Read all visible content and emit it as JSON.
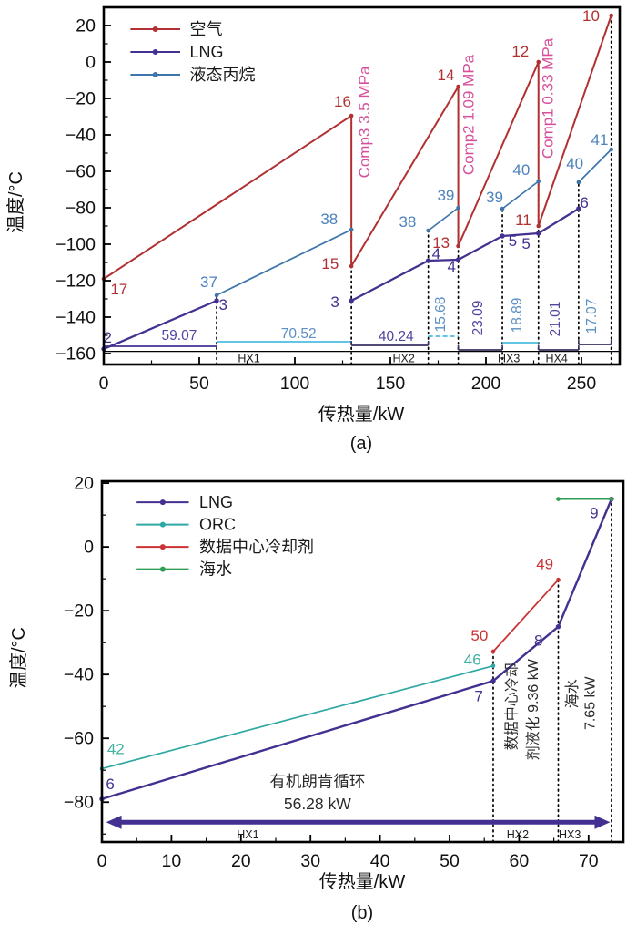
{
  "figure_caption_a": "(a)",
  "figure_caption_b": "(b)",
  "chart_data": [
    {
      "id": "a",
      "type": "line",
      "caption": "(a)",
      "xlabel": "传热量/kW",
      "ylabel": "温度/°C",
      "xlim": [
        0,
        270
      ],
      "ylim": [
        -166,
        30
      ],
      "xticks": [
        0,
        50,
        100,
        150,
        200,
        250
      ],
      "yticks": [
        20,
        0,
        -20,
        -40,
        -60,
        -80,
        -100,
        -120,
        -140,
        -160
      ],
      "x_minor": 25,
      "y_minor": 10,
      "grid": false,
      "legend": {
        "position": "top-left",
        "line_x1": 14,
        "line_x2": 40,
        "text_x": 45,
        "rows": [
          {
            "label": "空气",
            "color": "#b13032",
            "t": 18
          },
          {
            "label": "LNG",
            "color": "#443090",
            "t": 5.5
          },
          {
            "label": "液态丙烷",
            "color": "#3f75ad",
            "t": -7
          }
        ]
      },
      "series": [
        {
          "name": "空气",
          "color": "#b13032",
          "width": 2,
          "points": [
            [
              0,
              -119
            ],
            [
              129.59,
              -29.5
            ],
            [
              129.59,
              -112
            ],
            [
              185.51,
              -13.5
            ],
            [
              185.51,
              -101
            ],
            [
              227.49,
              0
            ],
            [
              227.49,
              -90
            ],
            [
              265.57,
              25.5
            ]
          ]
        },
        {
          "name": "LNG",
          "color": "#443090",
          "width": 2.3,
          "points": [
            [
              0,
              -157.5
            ],
            [
              59.07,
              -131
            ]
          ]
        },
        {
          "name": "LNG",
          "color": "#443090",
          "width": 2.3,
          "points": [
            [
              129.59,
              -131
            ],
            [
              169.83,
              -109
            ],
            [
              185.51,
              -108.5
            ],
            [
              208.6,
              -95.5
            ],
            [
              227.49,
              -94
            ],
            [
              248.5,
              -80.5
            ]
          ]
        },
        {
          "name": "液态丙烷",
          "color": "#3f75ad",
          "width": 1.7,
          "points": [
            [
              59.07,
              -128
            ],
            [
              129.59,
              -92
            ]
          ]
        },
        {
          "name": "液态丙烷",
          "color": "#3f75ad",
          "width": 1.7,
          "points": [
            [
              169.83,
              -92.5
            ],
            [
              185.51,
              -80
            ]
          ]
        },
        {
          "name": "液态丙烷",
          "color": "#3f75ad",
          "width": 1.7,
          "points": [
            [
              208.6,
              -80.5
            ],
            [
              227.49,
              -65.5
            ]
          ]
        },
        {
          "name": "液态丙烷",
          "color": "#3f75ad",
          "width": 1.7,
          "points": [
            [
              248.5,
              -66
            ],
            [
              265.57,
              -48
            ]
          ]
        }
      ],
      "dotted_verticals": [
        {
          "x": 59.07,
          "t_top": -128
        },
        {
          "x": 129.59,
          "t_top": -92
        },
        {
          "x": 169.83,
          "t_top": -92.5
        },
        {
          "x": 185.51,
          "t_top": -80
        },
        {
          "x": 208.6,
          "t_top": -80.5
        },
        {
          "x": 227.49,
          "t_top": -65.5
        },
        {
          "x": 248.5,
          "t_top": -66
        },
        {
          "x": 265.57,
          "t_top": 25.5
        }
      ],
      "duty_bars": [
        {
          "x1": 0,
          "x2": 59.07,
          "t": -156,
          "color": "#443090",
          "end_ticks": false,
          "dash": false
        },
        {
          "x1": 59.07,
          "x2": 129.59,
          "t": -153.5,
          "color": "#4bbde2",
          "end_ticks": false,
          "dash": false
        },
        {
          "x1": 129.59,
          "x2": 169.83,
          "t": -155.5,
          "color": "#3a3160",
          "end_ticks": true,
          "dash": false
        },
        {
          "x1": 169.83,
          "x2": 185.51,
          "t": -150.5,
          "color": "#4bbde2",
          "end_ticks": false,
          "dash": true
        },
        {
          "x1": 185.51,
          "x2": 208.6,
          "t": -158,
          "color": "#3a3160",
          "end_ticks": true,
          "dash": false
        },
        {
          "x1": 208.6,
          "x2": 227.49,
          "t": -154,
          "color": "#4bbde2",
          "end_ticks": false,
          "dash": false
        },
        {
          "x1": 227.49,
          "x2": 248.5,
          "t": -158,
          "color": "#3a3160",
          "end_ticks": true,
          "dash": false
        },
        {
          "x1": 248.5,
          "x2": 265.57,
          "t": -155,
          "color": "#3a3160",
          "end_ticks": true,
          "dash": false
        }
      ],
      "duty_labels": [
        {
          "text": "59.07",
          "x": 39.5,
          "t": -150,
          "color": "#4f46a0",
          "rotate": false
        },
        {
          "text": "70.52",
          "x": 102,
          "t": -149,
          "color": "#5b8fc3",
          "rotate": false
        },
        {
          "text": "40.24",
          "x": 153,
          "t": -150.5,
          "color": "#4f46a0",
          "rotate": false
        },
        {
          "text": "15.68",
          "x": 178.5,
          "t": -136,
          "color": "#5b8fc3",
          "rotate": true
        },
        {
          "text": "23.09",
          "x": 198,
          "t": -138,
          "color": "#4f46a0",
          "rotate": true
        },
        {
          "text": "18.89",
          "x": 218.5,
          "t": -136.5,
          "color": "#5b8fc3",
          "rotate": true
        },
        {
          "text": "21.01",
          "x": 238.5,
          "t": -138.5,
          "color": "#4f46a0",
          "rotate": true
        },
        {
          "text": "17.07",
          "x": 257.5,
          "t": -137,
          "color": "#5b8fc3",
          "rotate": true
        }
      ],
      "state_labels": [
        {
          "text": "17",
          "x": 8,
          "t": -125,
          "color": "#b13032"
        },
        {
          "text": "16",
          "x": 125,
          "t": -22,
          "color": "#b13032"
        },
        {
          "text": "15",
          "x": 118.5,
          "t": -111,
          "color": "#b13032"
        },
        {
          "text": "14",
          "x": 179,
          "t": -7.5,
          "color": "#b13032"
        },
        {
          "text": "13",
          "x": 176.5,
          "t": -99.5,
          "color": "#b13032"
        },
        {
          "text": "12",
          "x": 218,
          "t": 5.5,
          "color": "#b13032"
        },
        {
          "text": "11",
          "x": 219.5,
          "t": -87,
          "color": "#b13032"
        },
        {
          "text": "10",
          "x": 255,
          "t": 25,
          "color": "#b13032"
        },
        {
          "text": "2",
          "x": 2,
          "t": -151.5,
          "color": "#443090"
        },
        {
          "text": "3",
          "x": 62.5,
          "t": -133.5,
          "color": "#443090"
        },
        {
          "text": "3",
          "x": 121,
          "t": -132,
          "color": "#443090"
        },
        {
          "text": "4",
          "x": 174,
          "t": -105.5,
          "color": "#443090"
        },
        {
          "text": "4",
          "x": 182,
          "t": -112.5,
          "color": "#443090"
        },
        {
          "text": "5",
          "x": 214,
          "t": -98.5,
          "color": "#443090"
        },
        {
          "text": "5",
          "x": 221,
          "t": -100,
          "color": "#443090"
        },
        {
          "text": "6",
          "x": 251.5,
          "t": -77.5,
          "color": "#443090"
        },
        {
          "text": "37",
          "x": 55,
          "t": -121,
          "color": "#4d82bb"
        },
        {
          "text": "38",
          "x": 118,
          "t": -86.5,
          "color": "#4d82bb"
        },
        {
          "text": "38",
          "x": 159,
          "t": -88,
          "color": "#4d82bb"
        },
        {
          "text": "39",
          "x": 179,
          "t": -73.5,
          "color": "#4d82bb"
        },
        {
          "text": "39",
          "x": 204.5,
          "t": -74.5,
          "color": "#4d82bb"
        },
        {
          "text": "40",
          "x": 218.5,
          "t": -59.5,
          "color": "#4d82bb"
        },
        {
          "text": "40",
          "x": 246.5,
          "t": -56,
          "color": "#4d82bb"
        },
        {
          "text": "41",
          "x": 259.5,
          "t": -43,
          "color": "#4d82bb"
        }
      ],
      "compressor_labels": {
        "color": "#d5509c",
        "items": [
          {
            "text": "Comp3 3.5 MPa",
            "x": 139,
            "t": -33
          },
          {
            "text": "Comp2 1.09 MPa",
            "x": 193.5,
            "t": -29
          },
          {
            "text": "Comp1 0.33 MPa",
            "x": 235,
            "t": -20
          }
        ]
      },
      "hx_band": {
        "line_t": -158.8,
        "label_t": -162.8,
        "labels": [
          {
            "text": "HX1",
            "x": 76
          },
          {
            "text": "HX2",
            "x": 157
          },
          {
            "text": "HX3",
            "x": 212
          },
          {
            "text": "HX4",
            "x": 237
          }
        ]
      }
    },
    {
      "id": "b",
      "type": "line",
      "caption": "(b)",
      "xlabel": "传热量/kW",
      "ylabel": "温度/°C",
      "xlim": [
        0,
        75
      ],
      "ylim": [
        -92.5,
        20.6
      ],
      "xticks": [
        0,
        10,
        20,
        30,
        40,
        50,
        60,
        70
      ],
      "yticks": [
        20,
        0,
        -20,
        -40,
        -60,
        -80
      ],
      "x_minor": 5,
      "y_minor": 10,
      "grid": false,
      "legend": {
        "position": "top-left",
        "line_x1": 5,
        "line_x2": 12.5,
        "text_x": 14,
        "rows": [
          {
            "label": "LNG",
            "color": "#443090",
            "t": 14
          },
          {
            "label": "ORC",
            "color": "#2fa8a4",
            "t": 7
          },
          {
            "label": "数据中心冷却剂",
            "color": "#cb3335",
            "t": 0
          },
          {
            "label": "海水",
            "color": "#2f9e55",
            "t": -7
          }
        ]
      },
      "series": [
        {
          "name": "LNG",
          "color": "#443090",
          "width": 2.4,
          "points": [
            [
              0,
              -79
            ],
            [
              56.28,
              -42
            ],
            [
              65.64,
              -25
            ],
            [
              73.29,
              15
            ]
          ]
        },
        {
          "name": "ORC",
          "color": "#2fa8a4",
          "width": 1.7,
          "points": [
            [
              0,
              -69.5
            ],
            [
              56.28,
              -37.3
            ]
          ]
        },
        {
          "name": "数据中心冷却剂",
          "color": "#cb3335",
          "width": 1.8,
          "points": [
            [
              56.28,
              -32.8
            ],
            [
              65.64,
              -10.3
            ]
          ]
        },
        {
          "name": "海水",
          "color": "#2f9e55",
          "width": 1.8,
          "points": [
            [
              65.64,
              15
            ],
            [
              73.29,
              15
            ]
          ]
        }
      ],
      "dotted_verticals": [
        {
          "x": 56.28,
          "t_top": -32.8
        },
        {
          "x": 65.64,
          "t_top": -10.3
        },
        {
          "x": 73.29,
          "t_top": 15
        }
      ],
      "duty_bars": [],
      "duty_labels": [],
      "state_labels": [
        {
          "text": "6",
          "x": 1.2,
          "t": -74.5,
          "color": "#443090"
        },
        {
          "text": "42",
          "x": 2,
          "t": -63.5,
          "color": "#43b0a0"
        },
        {
          "text": "7",
          "x": 54.2,
          "t": -47,
          "color": "#443090"
        },
        {
          "text": "8",
          "x": 62.8,
          "t": -29.5,
          "color": "#443090"
        },
        {
          "text": "9",
          "x": 70.8,
          "t": 10.5,
          "color": "#443090"
        },
        {
          "text": "46",
          "x": 53.3,
          "t": -35.5,
          "color": "#43b0a0"
        },
        {
          "text": "50",
          "x": 54.3,
          "t": -28,
          "color": "#cb3335"
        },
        {
          "text": "49",
          "x": 63.7,
          "t": -5.5,
          "color": "#cb3335"
        }
      ],
      "compressor_labels": {
        "color": "#d5509c",
        "items": []
      },
      "annotations": {
        "center_texts": [
          {
            "text": "有机朗肯循环",
            "x": 31,
            "t": -73.5
          },
          {
            "text": "56.28 kW",
            "x": 31,
            "t": -80.5
          }
        ],
        "vertical_texts": [
          {
            "text": "数据中心冷却",
            "x": 59.6,
            "t": -50
          },
          {
            "text": "剂液化 9.36 kW",
            "x": 62.7,
            "t": -51
          },
          {
            "text": "海水",
            "x": 68.3,
            "t": -46
          },
          {
            "text": "7.65 kW",
            "x": 70.9,
            "t": -49
          }
        ],
        "arrow": {
          "x1": 0.6,
          "x2": 73.1,
          "t": -86.3,
          "color": "#443090"
        }
      },
      "hx_band": {
        "line_t": null,
        "label_t": -90.2,
        "labels": [
          {
            "text": "HX1",
            "x": 21
          },
          {
            "text": "HX2",
            "x": 59.8
          },
          {
            "text": "HX3",
            "x": 67.3
          }
        ]
      }
    }
  ]
}
